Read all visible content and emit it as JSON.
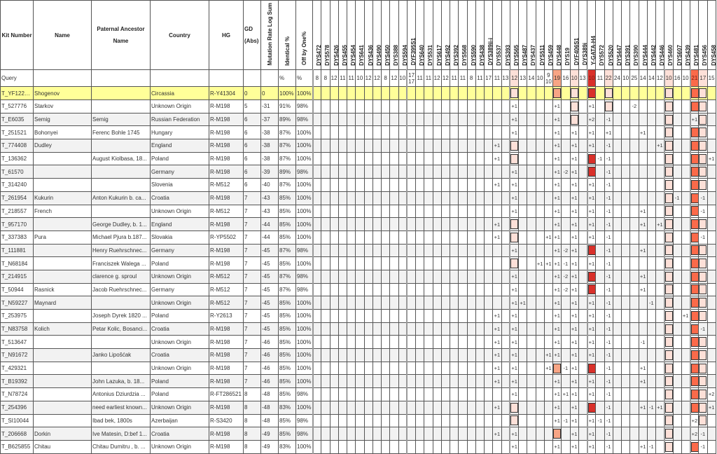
{
  "headers": {
    "kit": "Kit Number",
    "name": "Name",
    "ancestor": "Paternal Ancestor Name",
    "country": "Country",
    "hg": "HG",
    "gd": "GD (Abs)",
    "logsum": "Mutation Rate Log Sum",
    "identical": "Identical %",
    "off": "Off by One%"
  },
  "query": {
    "label": "Query",
    "identical": "%",
    "off": "%"
  },
  "colors": {
    "highlight_row": "#ffff99",
    "light": "#fde0d8",
    "salmon": "#f8a585",
    "orange": "#fb6a4a",
    "dark": "#d9302a"
  },
  "markers": [
    {
      "name": "DYS472",
      "query": "8"
    },
    {
      "name": "DYS578",
      "query": "8"
    },
    {
      "name": "DYS426",
      "query": "12"
    },
    {
      "name": "DYS455",
      "query": "11"
    },
    {
      "name": "DYS454",
      "query": "11"
    },
    {
      "name": "DYS641",
      "query": "10"
    },
    {
      "name": "DYS436",
      "query": "12"
    },
    {
      "name": "DYS490",
      "query": "12"
    },
    {
      "name": "DYS450",
      "query": "8"
    },
    {
      "name": "DYS388",
      "query": "12"
    },
    {
      "name": "DYS594",
      "query": "10"
    },
    {
      "name": "DYF395S1",
      "query": "17 17"
    },
    {
      "name": "DYS640",
      "query": "11"
    },
    {
      "name": "DYS531",
      "query": "11"
    },
    {
      "name": "DYS617",
      "query": "12"
    },
    {
      "name": "DYS492",
      "query": "12"
    },
    {
      "name": "DYS392",
      "query": "11"
    },
    {
      "name": "DYS568",
      "query": "11"
    },
    {
      "name": "DYS590",
      "query": "8"
    },
    {
      "name": "DYS438",
      "query": "11"
    },
    {
      "name": "DYS389ii-i",
      "query": "17"
    },
    {
      "name": "DYS537",
      "query": "11"
    },
    {
      "name": "DYS393",
      "query": "13"
    },
    {
      "name": "DYS565",
      "query": "12",
      "color": "#fde0d8"
    },
    {
      "name": "DYS487",
      "query": "13"
    },
    {
      "name": "DYS437",
      "query": "14"
    },
    {
      "name": "DYS511",
      "query": "10"
    },
    {
      "name": "DYS459",
      "query": "9 10"
    },
    {
      "name": "DYS448",
      "query": "19",
      "color": "#f8a585"
    },
    {
      "name": "DYS19",
      "query": "16"
    },
    {
      "name": "DYF406S1",
      "query": "10",
      "color": "#fde0d8"
    },
    {
      "name": "DYS389i",
      "query": "13"
    },
    {
      "name": "Y-GATA-H4",
      "query": "10",
      "color": "#d9302a"
    },
    {
      "name": "DYS572",
      "query": "11"
    },
    {
      "name": "DYS520",
      "query": "22",
      "color": "#fde0d8"
    },
    {
      "name": "DYS447",
      "query": "24"
    },
    {
      "name": "DYS391",
      "query": "10"
    },
    {
      "name": "DYS390",
      "query": "25"
    },
    {
      "name": "DYS444",
      "query": "14"
    },
    {
      "name": "DYS442",
      "query": "14"
    },
    {
      "name": "DYS446",
      "query": "12"
    },
    {
      "name": "DYS460",
      "query": "10",
      "color": "#fde0d8"
    },
    {
      "name": "DYS607",
      "query": "16"
    },
    {
      "name": "DYS439",
      "query": "10"
    },
    {
      "name": "DYS481",
      "query": "21",
      "color": "#fb6a4a"
    },
    {
      "name": "DYS456",
      "query": "17",
      "color": "#fde0d8"
    },
    {
      "name": "DYS458",
      "query": "15"
    }
  ],
  "rows": [
    {
      "kit": "T_YF122814",
      "name": "Shogenov",
      "ancestor": "",
      "country": "Circassia",
      "hg": "R-Y41304",
      "gd": "0",
      "logsum": "0",
      "identical": "100%",
      "off": "100%",
      "diffs": {},
      "boxed": [
        "DYS565",
        "DYS448",
        "DYF406S1",
        "Y-GATA-H4",
        "DYS520",
        "DYS460",
        "DYS481",
        "DYS456"
      ]
    },
    {
      "kit": "T_527776",
      "name": "Starkov",
      "ancestor": "",
      "country": "Unknown Origin",
      "hg": "R-M198",
      "gd": "5",
      "logsum": "-31",
      "identical": "91%",
      "off": "98%",
      "diffs": {
        "DYS565": "+1",
        "DYS448": "+1",
        "Y-GATA-H4": "+1",
        "DYS390": "-2"
      },
      "boxed": [
        "DYF406S1",
        "DYS520",
        "DYS460",
        "DYS481",
        "DYS456"
      ]
    },
    {
      "kit": "T_E6035",
      "name": "Semig",
      "ancestor": "Semig",
      "country": "Russian Federation",
      "hg": "R-M198",
      "gd": "6",
      "logsum": "-37",
      "identical": "89%",
      "off": "98%",
      "diffs": {
        "DYS565": "+1",
        "DYS448": "+1",
        "Y-GATA-H4": "+2",
        "DYS520": "-1",
        "DYS481": "+1"
      },
      "boxed": [
        "DYF406S1",
        "DYS460",
        "DYS456"
      ]
    },
    {
      "kit": "T_251521",
      "name": "Bohonyei",
      "ancestor": "Ferenc Bohle 1745",
      "country": "Hungary",
      "hg": "R-M198",
      "gd": "6",
      "logsum": "-38",
      "identical": "87%",
      "off": "100%",
      "diffs": {
        "DYS565": "+1",
        "DYS448": "+1",
        "DYF406S1": "+1",
        "Y-GATA-H4": "+1",
        "DYS520": "+1",
        "DYS444": "+1"
      },
      "boxed": [
        "DYS460",
        "DYS481",
        "DYS456"
      ]
    },
    {
      "kit": "T_774408",
      "name": "Dudley",
      "ancestor": "",
      "country": "England",
      "hg": "R-M198",
      "gd": "6",
      "logsum": "-38",
      "identical": "87%",
      "off": "100%",
      "diffs": {
        "DYS537": "+1",
        "DYS448": "+1",
        "DYF406S1": "+1",
        "Y-GATA-H4": "+1",
        "DYS520": "-1",
        "DYS446": "+1"
      },
      "boxed": [
        "DYS565",
        "DYS460",
        "DYS481",
        "DYS456"
      ]
    },
    {
      "kit": "T_136362",
      "name": "",
      "ancestor": "August Kiolbasa, 18...",
      "country": "Poland",
      "hg": "R-M198",
      "gd": "6",
      "logsum": "-38",
      "identical": "87%",
      "off": "100%",
      "diffs": {
        "DYS537": "+1",
        "DYS448": "+1",
        "DYF406S1": "+1",
        "DYS572": "-1",
        "DYS520": "-1",
        "DYS458": "+1"
      },
      "boxed": [
        "DYS565",
        "Y-GATA-H4",
        "DYS460",
        "DYS481",
        "DYS456"
      ]
    },
    {
      "kit": "T_61570",
      "name": "",
      "ancestor": "",
      "country": "Germany",
      "hg": "R-M198",
      "gd": "6",
      "logsum": "-39",
      "identical": "89%",
      "off": "98%",
      "diffs": {
        "DYS565": "+1",
        "DYS448": "+1",
        "DYS19": "-2",
        "DYF406S1": "+1",
        "DYS520": "-1"
      },
      "boxed": [
        "Y-GATA-H4",
        "DYS460",
        "DYS481",
        "DYS456"
      ]
    },
    {
      "kit": "T_314240",
      "name": "",
      "ancestor": "",
      "country": "Slovenia",
      "hg": "R-M512",
      "gd": "6",
      "logsum": "-40",
      "identical": "87%",
      "off": "100%",
      "diffs": {
        "DYS537": "+1",
        "DYS565": "+1",
        "DYS448": "+1",
        "DYF406S1": "+1",
        "Y-GATA-H4": "+1",
        "DYS520": "-1"
      },
      "boxed": [
        "DYS460",
        "DYS481",
        "DYS456"
      ]
    },
    {
      "kit": "T_261954",
      "name": "Kukurin",
      "ancestor": "Anton Kukurin b. ca...",
      "country": "Croatia",
      "hg": "R-M198",
      "gd": "7",
      "logsum": "-43",
      "identical": "85%",
      "off": "100%",
      "diffs": {
        "DYS565": "+1",
        "DYS448": "+1",
        "DYF406S1": "+1",
        "Y-GATA-H4": "+1",
        "DYS520": "-1",
        "DYS607": "-1",
        "DYS456": "-1"
      },
      "boxed": [
        "DYS460",
        "DYS481"
      ]
    },
    {
      "kit": "T_218557",
      "name": "French",
      "ancestor": "",
      "country": "Unknown Origin",
      "hg": "R-M512",
      "gd": "7",
      "logsum": "-43",
      "identical": "85%",
      "off": "100%",
      "diffs": {
        "DYS565": "+1",
        "DYS448": "+1",
        "DYF406S1": "+1",
        "Y-GATA-H4": "+1",
        "DYS520": "-1",
        "DYS444": "+1",
        "DYS456": "-1"
      },
      "boxed": [
        "DYS460",
        "DYS481"
      ]
    },
    {
      "kit": "T_957170",
      "name": "",
      "ancestor": "George Dudley, b. 1...",
      "country": "England",
      "hg": "R-M198",
      "gd": "7",
      "logsum": "-44",
      "identical": "85%",
      "off": "100%",
      "diffs": {
        "DYS537": "+1",
        "DYS448": "+1",
        "DYF406S1": "+1",
        "Y-GATA-H4": "+1",
        "DYS520": "-1",
        "DYS444": "+1",
        "DYS446": "+1"
      },
      "boxed": [
        "DYS565",
        "DYS460",
        "DYS481",
        "DYS456"
      ]
    },
    {
      "kit": "T_337383",
      "name": "Pura",
      "ancestor": "Michael Pjura b.187...",
      "country": "Slovakia",
      "hg": "R-YP5502",
      "gd": "7",
      "logsum": "-44",
      "identical": "85%",
      "off": "100%",
      "diffs": {
        "DYS537": "+1",
        "DYS459": "+1",
        "DYS448": "+1",
        "DYF406S1": "+1",
        "Y-GATA-H4": "+1",
        "DYS520": "-1",
        "DYS456": "-1"
      },
      "boxed": [
        "DYS565",
        "DYS460",
        "DYS481"
      ]
    },
    {
      "kit": "T_111881",
      "name": "",
      "ancestor": "Henry Ruehrschnec...",
      "country": "Germany",
      "hg": "R-M198",
      "gd": "7",
      "logsum": "-45",
      "identical": "87%",
      "off": "98%",
      "diffs": {
        "DYS565": "+1",
        "DYS448": "+1",
        "DYS19": "-2",
        "DYF406S1": "+1",
        "DYS520": "-1",
        "DYS444": "+1"
      },
      "boxed": [
        "Y-GATA-H4",
        "DYS460",
        "DYS481",
        "DYS456"
      ]
    },
    {
      "kit": "T_N68184",
      "name": "",
      "ancestor": "Franciszek Walega ...",
      "country": "Poland",
      "hg": "R-M198",
      "gd": "7",
      "logsum": "-45",
      "identical": "85%",
      "off": "100%",
      "diffs": {
        "DYS511": "+1",
        "DYS459": "+1",
        "DYS448": "+1",
        "DYS19": "-1",
        "DYF406S1": "+1",
        "Y-GATA-H4": "+1",
        "DYS520": "-1"
      },
      "boxed": [
        "DYS565",
        "DYS460",
        "DYS481",
        "DYS456"
      ]
    },
    {
      "kit": "T_214915",
      "name": "",
      "ancestor": "clarence g. sproul",
      "country": "Unknown Origin",
      "hg": "R-M512",
      "gd": "7",
      "logsum": "-45",
      "identical": "87%",
      "off": "98%",
      "diffs": {
        "DYS565": "+1",
        "DYS448": "+1",
        "DYS19": "-2",
        "DYF406S1": "+1",
        "DYS520": "-1",
        "DYS444": "+1"
      },
      "boxed": [
        "Y-GATA-H4",
        "DYS460",
        "DYS481",
        "DYS456"
      ]
    },
    {
      "kit": "T_50944",
      "name": "Rasnick",
      "ancestor": "Jacob Ruehrschnec...",
      "country": "Germany",
      "hg": "R-M512",
      "gd": "7",
      "logsum": "-45",
      "identical": "87%",
      "off": "98%",
      "diffs": {
        "DYS565": "+1",
        "DYS448": "+1",
        "DYS19": "-2",
        "DYF406S1": "+1",
        "DYS520": "-1",
        "DYS444": "+1"
      },
      "boxed": [
        "Y-GATA-H4",
        "DYS460",
        "DYS481",
        "DYS456"
      ]
    },
    {
      "kit": "T_N59227",
      "name": "Maynard",
      "ancestor": "",
      "country": "Unknown Origin",
      "hg": "R-M512",
      "gd": "7",
      "logsum": "-45",
      "identical": "85%",
      "off": "100%",
      "diffs": {
        "DYS565": "+1",
        "DYS487": "+1",
        "DYS448": "+1",
        "DYF406S1": "+1",
        "Y-GATA-H4": "+1",
        "DYS520": "-1",
        "DYS442": "-1"
      },
      "boxed": [
        "DYS460",
        "DYS481",
        "DYS456"
      ]
    },
    {
      "kit": "T_253975",
      "name": "",
      "ancestor": "Joseph Dyrek 1820 ...",
      "country": "Poland",
      "hg": "R-Y2613",
      "gd": "7",
      "logsum": "-45",
      "identical": "85%",
      "off": "100%",
      "diffs": {
        "DYS537": "+1",
        "DYS565": "+1",
        "DYS448": "+1",
        "DYF406S1": "+1",
        "Y-GATA-H4": "+1",
        "DYS520": "-1",
        "DYS439": "+1"
      },
      "boxed": [
        "DYS460",
        "DYS481",
        "DYS456"
      ]
    },
    {
      "kit": "T_N83758",
      "name": "Kolich",
      "ancestor": "Petar Kolic, Bosanci...",
      "country": "Croatia",
      "hg": "R-M198",
      "gd": "7",
      "logsum": "-45",
      "identical": "85%",
      "off": "100%",
      "diffs": {
        "DYS537": "+1",
        "DYS565": "+1",
        "DYS448": "+1",
        "DYF406S1": "+1",
        "Y-GATA-H4": "+1",
        "DYS520": "-1",
        "DYS456": "-1"
      },
      "boxed": [
        "DYS460",
        "DYS481"
      ]
    },
    {
      "kit": "T_513647",
      "name": "",
      "ancestor": "",
      "country": "Unknown Origin",
      "hg": "R-M198",
      "gd": "7",
      "logsum": "-46",
      "identical": "85%",
      "off": "100%",
      "diffs": {
        "DYS537": "+1",
        "DYS565": "+1",
        "DYS448": "+1",
        "DYF406S1": "+1",
        "Y-GATA-H4": "+1",
        "DYS520": "-1",
        "DYS444": "-1"
      },
      "boxed": [
        "DYS460",
        "DYS481",
        "DYS456"
      ]
    },
    {
      "kit": "T_N91672",
      "name": "",
      "ancestor": "Janko Lipošćak",
      "country": "Croatia",
      "hg": "R-M198",
      "gd": "7",
      "logsum": "-46",
      "identical": "85%",
      "off": "100%",
      "diffs": {
        "DYS537": "+1",
        "DYS565": "+1",
        "DYS459": "+1",
        "DYS448": "+1",
        "DYF406S1": "+1",
        "Y-GATA-H4": "+1",
        "DYS520": "-1"
      },
      "boxed": [
        "DYS460",
        "DYS481",
        "DYS456"
      ]
    },
    {
      "kit": "T_429321",
      "name": "",
      "ancestor": "",
      "country": "Unknown Origin",
      "hg": "R-M198",
      "gd": "7",
      "logsum": "-46",
      "identical": "85%",
      "off": "100%",
      "diffs": {
        "DYS537": "+1",
        "DYS565": "+1",
        "DYS459": "+1",
        "DYS19": "-1",
        "DYF406S1": "+1",
        "DYS520": "-1",
        "DYS444": "+1"
      },
      "boxed": [
        "DYS448",
        "Y-GATA-H4",
        "DYS460",
        "DYS481",
        "DYS456"
      ]
    },
    {
      "kit": "T_B19392",
      "name": "",
      "ancestor": "John Lazuka, b. 18...",
      "country": "Poland",
      "hg": "R-M198",
      "gd": "7",
      "logsum": "-46",
      "identical": "85%",
      "off": "100%",
      "diffs": {
        "DYS537": "+1",
        "DYS565": "+1",
        "DYS448": "+1",
        "DYF406S1": "+1",
        "Y-GATA-H4": "+1",
        "DYS520": "-1",
        "DYS444": "+1"
      },
      "boxed": [
        "DYS460",
        "DYS481",
        "DYS456"
      ]
    },
    {
      "kit": "T_N78724",
      "name": "",
      "ancestor": "Antonius Dziurdzia ...",
      "country": "Poland",
      "hg": "R-FT286521",
      "gd": "8",
      "logsum": "-48",
      "identical": "85%",
      "off": "98%",
      "diffs": {
        "DYS565": "+1",
        "DYS448": "+1",
        "DYS19": "+1",
        "DYF406S1": "+1",
        "Y-GATA-H4": "+1",
        "DYS520": "-1",
        "DYS458": "+2"
      },
      "boxed": [
        "DYS460",
        "DYS481",
        "DYS456"
      ]
    },
    {
      "kit": "T_254396",
      "name": "",
      "ancestor": "need earliest known...",
      "country": "Unknown Origin",
      "hg": "R-M198",
      "gd": "8",
      "logsum": "-48",
      "identical": "83%",
      "off": "100%",
      "diffs": {
        "DYS537": "+1",
        "DYS448": "+1",
        "DYF406S1": "+1",
        "DYS520": "-1",
        "DYS444": "+1",
        "DYS442": "-1",
        "DYS446": "+1",
        "DYS458": "+1"
      },
      "boxed": [
        "DYS565",
        "Y-GATA-H4",
        "DYS460",
        "DYS481",
        "DYS456"
      ]
    },
    {
      "kit": "T_SI10044",
      "name": "",
      "ancestor": "Ibad bek, 1800s",
      "country": "Azerbaijan",
      "hg": "R-S3420",
      "gd": "8",
      "logsum": "-48",
      "identical": "85%",
      "off": "98%",
      "diffs": {
        "DYS448": "+1",
        "DYS19": "-1",
        "DYF406S1": "+1",
        "Y-GATA-H4": "+1",
        "DYS572": "-1",
        "DYS520": "-1",
        "DYS481": "+2"
      },
      "boxed": [
        "DYS565",
        "DYS460",
        "DYS456"
      ]
    },
    {
      "kit": "T_206668",
      "name": "Dorkin",
      "ancestor": "Ive Matesin, D:bef 1...",
      "country": "Croatia",
      "hg": "R-M198",
      "gd": "8",
      "logsum": "-49",
      "identical": "85%",
      "off": "98%",
      "diffs": {
        "DYS537": "+1",
        "DYS565": "+1",
        "DYF406S1": "+1",
        "Y-GATA-H4": "+1",
        "DYS520": "-1",
        "DYS481": "+2",
        "DYS456": "-1"
      },
      "boxed": [
        "DYS448",
        "DYS460"
      ]
    },
    {
      "kit": "T_B625855",
      "name": "Chitau",
      "ancestor": "Chitau Dumitru , b. ...",
      "country": "Unknown Origin",
      "hg": "R-M198",
      "gd": "8",
      "logsum": "-49",
      "identical": "83%",
      "off": "100%",
      "diffs": {
        "DYS565": "+1",
        "DYS448": "+1",
        "DYF406S1": "+1",
        "Y-GATA-H4": "+1",
        "DYS520": "-1",
        "DYS444": "+1",
        "DYS442": "-1",
        "DYS456": "-1"
      },
      "boxed": [
        "DYS460",
        "DYS481"
      ]
    }
  ]
}
